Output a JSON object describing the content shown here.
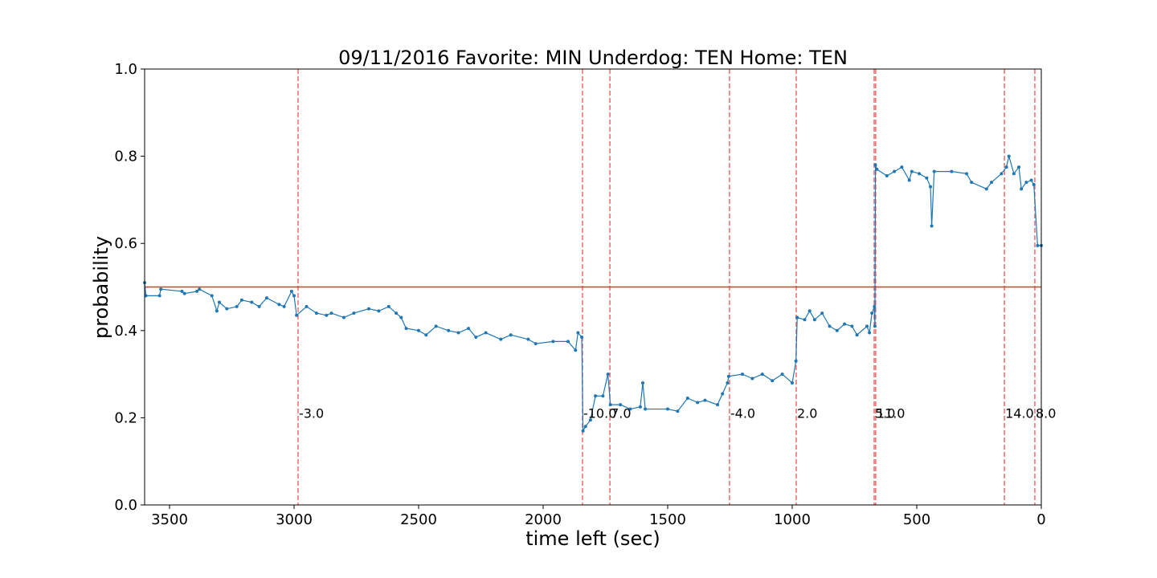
{
  "chart_data": {
    "type": "line",
    "title": "09/11/2016 Favorite: MIN Underdog: TEN Home: TEN",
    "xlabel": "time left (sec)",
    "ylabel": "probability",
    "xlim": [
      3600,
      0
    ],
    "xticks": [
      3500,
      3000,
      2500,
      2000,
      1500,
      1000,
      500,
      0
    ],
    "ylim": [
      0,
      1
    ],
    "yticks": [
      {
        "value": 0,
        "label": "0.0"
      },
      {
        "value": 0.2,
        "label": "0.2"
      },
      {
        "value": 0.4,
        "label": "0.4"
      },
      {
        "value": 0.6,
        "label": "0.6"
      },
      {
        "value": 0.8,
        "label": "0.8"
      },
      {
        "value": 1,
        "label": "1.0"
      }
    ],
    "hline": {
      "y": 0.5,
      "color": "#e8322e"
    },
    "vline_color": "#f06a6a",
    "annotations": [
      {
        "x": 2984,
        "y": 0.2,
        "text": "-3.0"
      },
      {
        "x": 1842,
        "y": 0.2,
        "text": "-10.0"
      },
      {
        "x": 1732,
        "y": 0.2,
        "text": "7.0"
      },
      {
        "x": 1252,
        "y": 0.2,
        "text": "-4.0"
      },
      {
        "x": 984,
        "y": 0.2,
        "text": "2.0"
      },
      {
        "x": 671,
        "y": 0.2,
        "text": "5.0"
      },
      {
        "x": 665,
        "y": 0.2,
        "text": "11.0"
      },
      {
        "x": 148,
        "y": 0.2,
        "text": "14.0"
      },
      {
        "x": 26,
        "y": 0.2,
        "text": "8.0"
      }
    ],
    "series": [
      {
        "color": "#1f77b4",
        "x": [
          3600,
          3595,
          3540,
          3535,
          3450,
          3440,
          3390,
          3380,
          3330,
          3310,
          3300,
          3270,
          3230,
          3210,
          3170,
          3140,
          3110,
          3060,
          3040,
          3010,
          3000,
          2990,
          2950,
          2910,
          2870,
          2850,
          2800,
          2760,
          2700,
          2660,
          2620,
          2590,
          2570,
          2550,
          2500,
          2470,
          2430,
          2380,
          2340,
          2300,
          2270,
          2230,
          2170,
          2130,
          2060,
          2030,
          1960,
          1900,
          1870,
          1860,
          1845,
          1840,
          1830,
          1810,
          1790,
          1760,
          1740,
          1730,
          1690,
          1650,
          1610,
          1600,
          1590,
          1500,
          1460,
          1420,
          1380,
          1350,
          1300,
          1280,
          1260,
          1255,
          1200,
          1160,
          1120,
          1080,
          1040,
          1000,
          985,
          980,
          950,
          930,
          910,
          880,
          850,
          820,
          790,
          760,
          740,
          700,
          690,
          680,
          670,
          668,
          666,
          660,
          620,
          590,
          560,
          530,
          520,
          490,
          460,
          445,
          440,
          430,
          360,
          300,
          280,
          220,
          200,
          160,
          140,
          130,
          110,
          90,
          80,
          60,
          40,
          30,
          15,
          0
        ],
        "values": [
          0.51,
          0.48,
          0.48,
          0.495,
          0.49,
          0.485,
          0.49,
          0.495,
          0.48,
          0.445,
          0.465,
          0.45,
          0.455,
          0.47,
          0.465,
          0.455,
          0.475,
          0.46,
          0.455,
          0.49,
          0.48,
          0.435,
          0.455,
          0.44,
          0.435,
          0.44,
          0.43,
          0.44,
          0.45,
          0.445,
          0.455,
          0.44,
          0.43,
          0.405,
          0.4,
          0.39,
          0.41,
          0.4,
          0.395,
          0.405,
          0.385,
          0.395,
          0.38,
          0.39,
          0.38,
          0.37,
          0.375,
          0.375,
          0.355,
          0.395,
          0.385,
          0.17,
          0.18,
          0.195,
          0.25,
          0.25,
          0.3,
          0.23,
          0.23,
          0.22,
          0.225,
          0.28,
          0.22,
          0.22,
          0.215,
          0.245,
          0.235,
          0.24,
          0.23,
          0.255,
          0.28,
          0.295,
          0.3,
          0.29,
          0.3,
          0.285,
          0.3,
          0.28,
          0.33,
          0.43,
          0.425,
          0.445,
          0.425,
          0.44,
          0.41,
          0.4,
          0.415,
          0.41,
          0.39,
          0.41,
          0.395,
          0.44,
          0.455,
          0.41,
          0.78,
          0.77,
          0.755,
          0.765,
          0.775,
          0.745,
          0.765,
          0.76,
          0.75,
          0.73,
          0.64,
          0.765,
          0.765,
          0.76,
          0.74,
          0.725,
          0.74,
          0.76,
          0.775,
          0.8,
          0.76,
          0.775,
          0.725,
          0.74,
          0.745,
          0.735,
          0.595,
          0.595
        ]
      }
    ]
  }
}
